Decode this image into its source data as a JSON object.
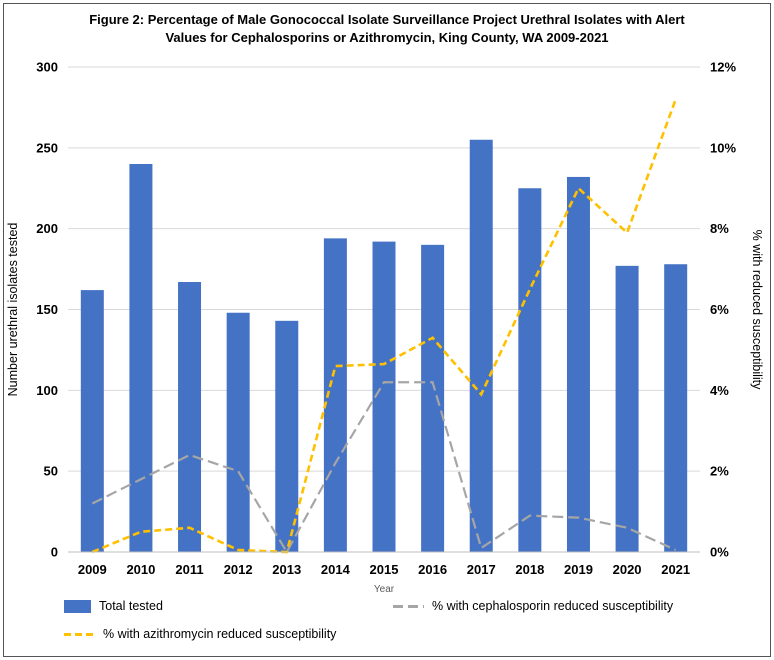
{
  "figure": {
    "title": "Figure 2: Percentage of Male Gonococcal Isolate Surveillance Project Urethral Isolates with Alert Values for Cephalosporins or Azithromycin, King County, WA 2009-2021"
  },
  "colors": {
    "bar": "#4472C4",
    "cephalosporin_line": "#A6A6A6",
    "azithromycin_line": "#FFC000",
    "gridline": "#D9D9D9"
  },
  "chart_data": {
    "type": "bar",
    "combo": "bar+line dual-axis",
    "title": "Figure 2: Percentage of Male Gonococcal Isolate Surveillance Project Urethral Isolates with Alert Values for Cephalosporins or Azithromycin, King County, WA 2009-2021",
    "categories": [
      "2009",
      "2010",
      "2011",
      "2012",
      "2013",
      "2014",
      "2015",
      "2016",
      "2017",
      "2018",
      "2019",
      "2020",
      "2021"
    ],
    "series": [
      {
        "name": "Total tested",
        "type": "bar",
        "axis": "left",
        "color": "#4472C4",
        "values": [
          162,
          240,
          167,
          148,
          143,
          194,
          192,
          190,
          255,
          225,
          232,
          177,
          178
        ]
      },
      {
        "name": "% with cephalosporin reduced susceptibility",
        "type": "line",
        "axis": "right",
        "color": "#A6A6A6",
        "dasharray": "11 5",
        "stroke_width": 2.2,
        "values": [
          1.2,
          1.8,
          2.4,
          2.0,
          0.0,
          2.2,
          4.2,
          4.2,
          0.1,
          0.9,
          0.85,
          0.6,
          0.05
        ]
      },
      {
        "name": "% with azithromycin reduced susceptibility",
        "type": "line",
        "axis": "right",
        "color": "#FFC000",
        "dasharray": "7 4",
        "stroke_width": 2.6,
        "values": [
          0.0,
          0.5,
          0.6,
          0.05,
          0.0,
          4.6,
          4.65,
          5.3,
          3.9,
          6.5,
          9.0,
          7.9,
          11.2
        ]
      }
    ],
    "left_axis": {
      "label": "Number urethral isolates tested",
      "min": 0,
      "max": 300,
      "step": 50
    },
    "right_axis": {
      "label": "% with reduced susceptibility",
      "min": 0,
      "max": 12,
      "step": 2,
      "tick_suffix": "%"
    },
    "xlabel": "Year",
    "grid": true,
    "legend_position": "bottom"
  }
}
